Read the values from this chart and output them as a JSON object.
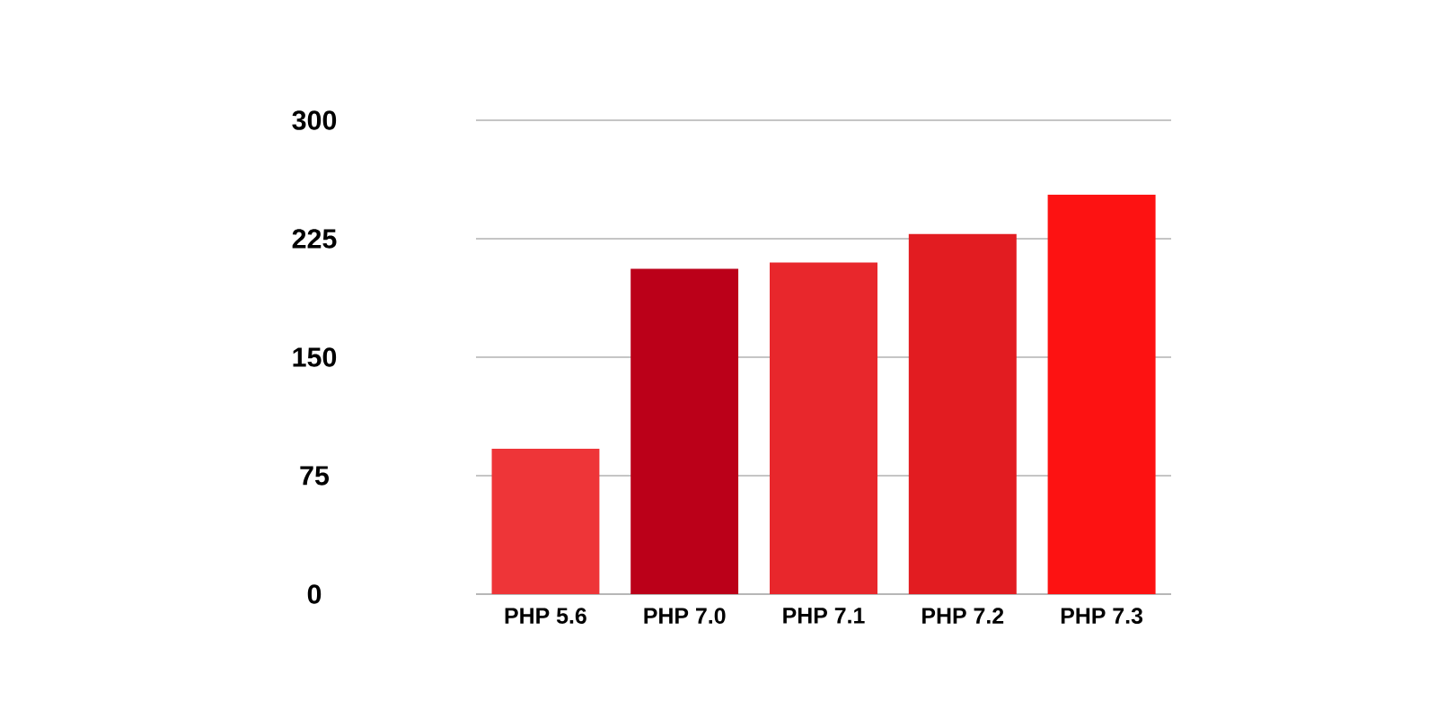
{
  "chart_data": {
    "type": "bar",
    "categories": [
      "PHP 5.6",
      "PHP 7.0",
      "PHP 7.1",
      "PHP 7.2",
      "PHP 7.3"
    ],
    "values": [
      92,
      206,
      210,
      228,
      253
    ],
    "colors": [
      "#ee3538",
      "#bb0019",
      "#e8272c",
      "#e21c21",
      "#fd1212"
    ],
    "ylim": [
      0,
      300
    ],
    "yticks": [
      0,
      75,
      150,
      225,
      300
    ],
    "grid": "y"
  }
}
